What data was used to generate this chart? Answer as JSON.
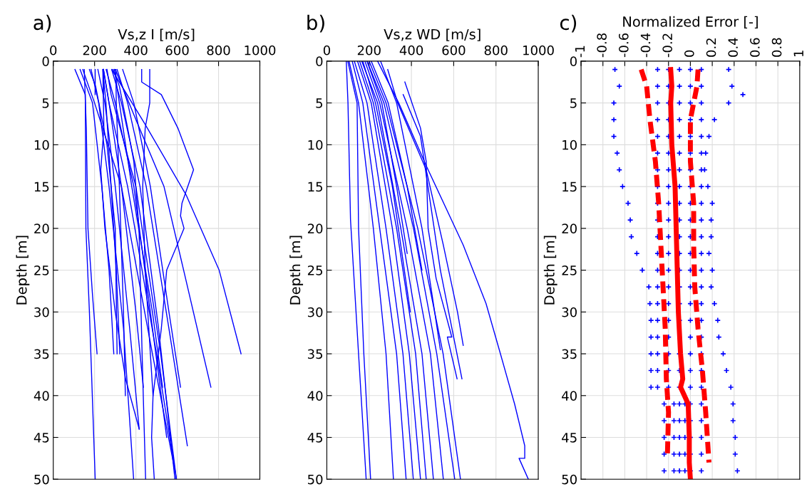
{
  "chart_data": [
    {
      "type": "line",
      "title": "a)",
      "xlabel": "Vs,z I [m/s]",
      "ylabel": "Depth [m]",
      "xlim": [
        0,
        1000
      ],
      "xticks": [
        0,
        200,
        400,
        600,
        800,
        1000
      ],
      "ylim": [
        50,
        0
      ],
      "yticks": [
        0,
        5,
        10,
        15,
        20,
        25,
        30,
        35,
        40,
        45,
        50
      ],
      "grid": true,
      "series": [
        {
          "color": "#0000ff",
          "x": [
            105,
            155,
            158,
            175,
            203
          ],
          "values": [
            1,
            4,
            20,
            30,
            50
          ]
        },
        {
          "color": "#0000ff",
          "x": [
            150,
            160,
            168,
            190,
            212
          ],
          "values": [
            1,
            8,
            20,
            28,
            35
          ]
        },
        {
          "color": "#0000ff",
          "x": [
            130,
            190,
            235,
            270,
            293
          ],
          "values": [
            1,
            5,
            15,
            25,
            35
          ]
        },
        {
          "color": "#0000ff",
          "x": [
            175,
            205,
            260,
            300,
            309
          ],
          "values": [
            1,
            3,
            10,
            20,
            35
          ]
        },
        {
          "color": "#0000ff",
          "x": [
            240,
            255,
            280,
            305,
            322
          ],
          "values": [
            1,
            5,
            15,
            25,
            35
          ]
        },
        {
          "color": "#0000ff",
          "x": [
            240,
            245,
            230,
            250,
            300,
            350,
            416
          ],
          "values": [
            1,
            8,
            13,
            20,
            30,
            38,
            44
          ]
        },
        {
          "color": "#0000ff",
          "x": [
            290,
            320,
            360,
            390,
            415,
            430,
            447
          ],
          "values": [
            1,
            3,
            8,
            12,
            20,
            35,
            50
          ]
        },
        {
          "color": "#0000ff",
          "x": [
            428,
            428,
            523,
            603,
            679,
            623,
            616,
            633,
            549,
            523,
            483,
            476,
            489
          ],
          "values": [
            1,
            2.5,
            4,
            8,
            13,
            17,
            18.5,
            20,
            25,
            32,
            40,
            45,
            50
          ]
        },
        {
          "color": "#0000ff",
          "x": [
            467,
            467,
            445,
            433,
            445,
            470,
            483
          ],
          "values": [
            1,
            5,
            8,
            15,
            25,
            35,
            40
          ]
        },
        {
          "color": "#0000ff",
          "x": [
            283,
            443,
            643,
            803,
            909
          ],
          "values": [
            1,
            7.5,
            16,
            25,
            35
          ]
        },
        {
          "color": "#0000ff",
          "x": [
            300,
            400,
            536,
            650,
            763
          ],
          "values": [
            1,
            7,
            15,
            27,
            39
          ]
        },
        {
          "color": "#0000ff",
          "x": [
            336,
            390,
            470,
            560,
            616
          ],
          "values": [
            1,
            5,
            15,
            30,
            39
          ]
        },
        {
          "color": "#0000ff",
          "x": [
            309,
            360,
            450,
            560,
            649
          ],
          "values": [
            1,
            5,
            15,
            32,
            46
          ]
        },
        {
          "color": "#0000ff",
          "x": [
            283,
            330,
            420,
            510,
            589
          ],
          "values": [
            1,
            5,
            15,
            32,
            50
          ]
        },
        {
          "color": "#0000ff",
          "x": [
            256,
            300,
            390,
            470,
            549
          ],
          "values": [
            1,
            5,
            15,
            30,
            45
          ]
        },
        {
          "color": "#0000ff",
          "x": [
            216,
            250,
            300,
            370,
            416
          ],
          "values": [
            1,
            5,
            15,
            32,
            44
          ]
        },
        {
          "color": "#0000ff",
          "x": [
            183,
            220,
            270,
            340,
            389
          ],
          "values": [
            1,
            5,
            15,
            32,
            50
          ]
        },
        {
          "color": "#0000ff",
          "x": [
            243,
            270,
            330,
            400,
            436
          ],
          "values": [
            1,
            5,
            15,
            30,
            39
          ]
        },
        {
          "color": "#0000ff",
          "x": [
            296,
            320,
            380,
            480,
            529
          ],
          "values": [
            1,
            5,
            15,
            30,
            39
          ]
        },
        {
          "color": "#0000ff",
          "x": [
            303,
            305,
            320,
            340,
            349
          ],
          "values": [
            1,
            5,
            15,
            30,
            40
          ]
        },
        {
          "color": "#0000ff",
          "x": [
            143,
            200,
            330,
            480,
            589
          ],
          "values": [
            1,
            5,
            15,
            35,
            49
          ]
        },
        {
          "color": "#0000ff",
          "x": [
            243,
            270,
            360,
            500,
            596
          ],
          "values": [
            1,
            5,
            15,
            35,
            50
          ]
        },
        {
          "color": "#0000ff",
          "x": [
            260,
            280,
            400,
            520,
            596
          ],
          "values": [
            1,
            4,
            15,
            35,
            50
          ]
        },
        {
          "color": "#0000ff",
          "x": [
            203,
            203
          ],
          "values": [
            1,
            4
          ]
        },
        {
          "color": "#0000ff",
          "x": [
            243,
            243
          ],
          "values": [
            1,
            4
          ]
        }
      ]
    },
    {
      "type": "line",
      "title": "b)",
      "xlabel": "Vs,z WD [m/s]",
      "ylabel": "Depth [m]",
      "xlim": [
        0,
        1000
      ],
      "xticks": [
        0,
        200,
        400,
        600,
        800,
        1000
      ],
      "ylim": [
        50,
        0
      ],
      "yticks": [
        0,
        5,
        10,
        15,
        20,
        25,
        30,
        35,
        40,
        45,
        50
      ],
      "grid": true,
      "series": [
        {
          "color": "#0000ff",
          "x": [
            92,
            100,
            112,
            150,
            186
          ],
          "values": [
            0,
            5,
            19,
            35,
            50
          ]
        },
        {
          "color": "#0000ff",
          "x": [
            99,
            143,
            150,
            175,
            207
          ],
          "values": [
            0,
            5,
            20,
            35,
            50
          ]
        },
        {
          "color": "#0000ff",
          "x": [
            105,
            150,
            220,
            280,
            315
          ],
          "values": [
            0,
            5,
            20,
            35,
            50
          ]
        },
        {
          "color": "#0000ff",
          "x": [
            120,
            170,
            250,
            330,
            375
          ],
          "values": [
            0,
            5,
            20,
            35,
            50
          ]
        },
        {
          "color": "#0000ff",
          "x": [
            130,
            190,
            280,
            360,
            409
          ],
          "values": [
            0,
            5,
            20,
            35,
            50
          ]
        },
        {
          "color": "#0000ff",
          "x": [
            145,
            210,
            310,
            390,
            443
          ],
          "values": [
            0,
            5,
            20,
            35,
            50
          ]
        },
        {
          "color": "#0000ff",
          "x": [
            155,
            220,
            330,
            420,
            470
          ],
          "values": [
            0,
            5,
            20,
            35,
            50
          ]
        },
        {
          "color": "#0000ff",
          "x": [
            165,
            240,
            350,
            450,
            504
          ],
          "values": [
            0,
            5,
            20,
            35,
            50
          ]
        },
        {
          "color": "#0000ff",
          "x": [
            180,
            250,
            380,
            490,
            551
          ],
          "values": [
            0,
            5,
            20,
            35,
            50
          ]
        },
        {
          "color": "#0000ff",
          "x": [
            190,
            270,
            410,
            520,
            605
          ],
          "values": [
            0,
            5,
            20,
            35,
            50
          ]
        },
        {
          "color": "#0000ff",
          "x": [
            200,
            280,
            430,
            550,
            632
          ],
          "values": [
            0,
            5,
            20,
            35,
            50
          ]
        },
        {
          "color": "#0000ff",
          "x": [
            240,
            340,
            470,
            645,
            753,
            821,
            888,
            936,
            936,
            909,
            953
          ],
          "values": [
            0,
            5,
            12.5,
            22,
            29,
            35,
            41,
            46,
            47.5,
            47.5,
            50
          ]
        },
        {
          "color": "#0000ff",
          "x": [
            288,
            335,
            470,
            551,
            618,
            645
          ],
          "values": [
            1,
            5,
            13,
            22,
            30,
            34
          ]
        },
        {
          "color": "#0000ff",
          "x": [
            369,
            443,
            470,
            479,
            517,
            591,
            570,
            616
          ],
          "values": [
            2.5,
            8,
            12,
            20,
            26,
            33,
            33,
            38
          ]
        },
        {
          "color": "#0000ff",
          "x": [
            361,
            443,
            537,
            639
          ],
          "values": [
            4,
            9,
            25,
            38
          ]
        },
        {
          "color": "#0000ff",
          "x": [
            254,
            330,
            450,
            537
          ],
          "values": [
            0,
            5,
            20,
            34.5
          ]
        },
        {
          "color": "#0000ff",
          "x": [
            190,
            260,
            330,
            380
          ],
          "values": [
            0,
            5,
            15,
            23
          ]
        },
        {
          "color": "#0000ff",
          "x": [
            170,
            230,
            310,
            395
          ],
          "values": [
            0,
            5,
            15,
            30
          ]
        },
        {
          "color": "#0000ff",
          "x": [
            210,
            290,
            380,
            450
          ],
          "values": [
            0,
            5,
            15,
            25
          ]
        }
      ]
    },
    {
      "type": "scatter",
      "title": "c)",
      "xlabel": "Normalized Error [-]",
      "ylabel": "Depth [m]",
      "xlim": [
        -1,
        1
      ],
      "xticks": [
        -1,
        -0.8,
        -0.6,
        -0.4,
        -0.2,
        0,
        0.2,
        0.4,
        0.6,
        0.8,
        1
      ],
      "ylim": [
        50,
        0
      ],
      "yticks": [
        0,
        5,
        10,
        15,
        20,
        25,
        30,
        35,
        40,
        45,
        50
      ],
      "grid": true,
      "series": [
        {
          "color": "#0000ff",
          "marker": "cross",
          "x": [
            -0.69,
            -0.3,
            -0.2,
            -0.1,
            0,
            0.1,
            0.35,
            -0.65,
            -0.3,
            -0.2,
            -0.1,
            0,
            0.1,
            0.38,
            -0.7,
            -0.3,
            -0.2,
            -0.1,
            0,
            0.1,
            0.35,
            -0.7,
            -0.3,
            -0.2,
            -0.1,
            0,
            0.1,
            0.22,
            -0.7,
            -0.3,
            -0.2,
            -0.1,
            0,
            0.1,
            0.17,
            -0.67,
            -0.3,
            -0.2,
            -0.1,
            0,
            0.1,
            0.14,
            -0.65,
            -0.3,
            -0.2,
            -0.1,
            0,
            0.1,
            0.13,
            -0.62,
            -0.3,
            -0.2,
            -0.1,
            0,
            0.1,
            0.16,
            -0.57,
            -0.3,
            -0.2,
            -0.1,
            0,
            0.1,
            0.2,
            -0.55,
            -0.3,
            -0.2,
            -0.1,
            0,
            0.1,
            0.19,
            -0.54,
            -0.3,
            -0.2,
            -0.1,
            0,
            0.1,
            0.19,
            -0.49,
            -0.3,
            -0.2,
            -0.1,
            0,
            0.1,
            0.17,
            -0.44,
            -0.3,
            -0.2,
            -0.1,
            0,
            0.1,
            0.2,
            -0.38,
            -0.3,
            -0.2,
            -0.1,
            0,
            0.1,
            0.19,
            -0.37,
            -0.3,
            -0.2,
            -0.1,
            0,
            0.1,
            0.22,
            -0.36,
            -0.3,
            -0.2,
            -0.1,
            0,
            0.1,
            0.25,
            -0.36,
            -0.3,
            -0.2,
            -0.1,
            0,
            0.1,
            0.26,
            -0.36,
            -0.3,
            -0.2,
            -0.1,
            0,
            0.1,
            0.3,
            -0.36,
            -0.3,
            -0.2,
            -0.1,
            0,
            0.1,
            0.33,
            -0.36,
            -0.3,
            -0.2,
            -0.1,
            0,
            0.1,
            0.37,
            -0.24,
            -0.15,
            -0.1,
            -0.05,
            0,
            0.1,
            0.39,
            -0.24,
            -0.15,
            -0.1,
            -0.05,
            0,
            0.1,
            0.39,
            -0.24,
            -0.15,
            -0.1,
            -0.05,
            0,
            0.1,
            0.41,
            -0.24,
            -0.15,
            -0.1,
            -0.05,
            0,
            0.1,
            0.41,
            -0.24,
            -0.15,
            -0.1,
            -0.05,
            0,
            0.1,
            0.43,
            0.48
          ],
          "values": [
            1,
            1,
            1,
            1,
            1,
            1,
            1,
            3,
            3,
            3,
            3,
            3,
            3,
            3,
            5,
            5,
            5,
            5,
            5,
            5,
            5,
            7,
            7,
            7,
            7,
            7,
            7,
            7,
            9,
            9,
            9,
            9,
            9,
            9,
            9,
            11,
            11,
            11,
            11,
            11,
            11,
            11,
            13,
            13,
            13,
            13,
            13,
            13,
            13,
            15,
            15,
            15,
            15,
            15,
            15,
            15,
            17,
            17,
            17,
            17,
            17,
            17,
            17,
            19,
            19,
            19,
            19,
            19,
            19,
            19,
            21,
            21,
            21,
            21,
            21,
            21,
            21,
            23,
            23,
            23,
            23,
            23,
            23,
            23,
            25,
            25,
            25,
            25,
            25,
            25,
            25,
            27,
            27,
            27,
            27,
            27,
            27,
            27,
            29,
            29,
            29,
            29,
            29,
            29,
            29,
            31,
            31,
            31,
            31,
            31,
            31,
            31,
            33,
            33,
            33,
            null,
            33,
            33,
            33,
            35,
            35,
            35,
            35,
            35,
            35,
            35,
            37,
            37,
            37,
            37,
            37,
            37,
            37,
            39,
            39,
            39,
            39,
            39,
            39,
            39,
            41,
            41,
            41,
            41,
            41,
            41,
            41,
            43,
            43,
            43,
            43,
            43,
            43,
            43,
            45,
            45,
            45,
            45,
            45,
            45,
            45,
            47,
            47,
            47,
            47,
            47,
            47,
            47,
            49,
            49,
            49,
            49,
            49,
            49,
            49,
            4
          ]
        },
        {
          "type": "line",
          "color": "#ff0000",
          "line_style": "solid",
          "x": [
            -0.18,
            -0.17,
            -0.18,
            -0.17,
            -0.14,
            -0.13,
            -0.12,
            -0.11,
            -0.09,
            -0.07,
            -0.09,
            -0.02,
            -0.01,
            -0.01,
            0
          ],
          "values": [
            1,
            3,
            5,
            10,
            15,
            20,
            25,
            30,
            35,
            38,
            39,
            41,
            45,
            48,
            50
          ]
        },
        {
          "type": "line",
          "color": "#ff0000",
          "line_style": "dashed",
          "x": [
            -0.45,
            -0.4,
            -0.37,
            -0.32,
            -0.29,
            -0.27,
            -0.25,
            -0.23,
            -0.22,
            -0.2,
            -0.21
          ],
          "values": [
            1,
            3,
            7,
            12,
            17,
            22,
            27,
            32,
            38,
            42,
            47
          ]
        },
        {
          "type": "line",
          "color": "#ff0000",
          "line_style": "dashed",
          "x": [
            0.07,
            0.06,
            0,
            0,
            0.03,
            0.03,
            0.04,
            0.07,
            0.11,
            0.14,
            0.17
          ],
          "values": [
            1,
            3,
            7,
            12,
            17,
            22,
            27,
            32,
            37,
            42,
            48
          ]
        }
      ]
    }
  ]
}
